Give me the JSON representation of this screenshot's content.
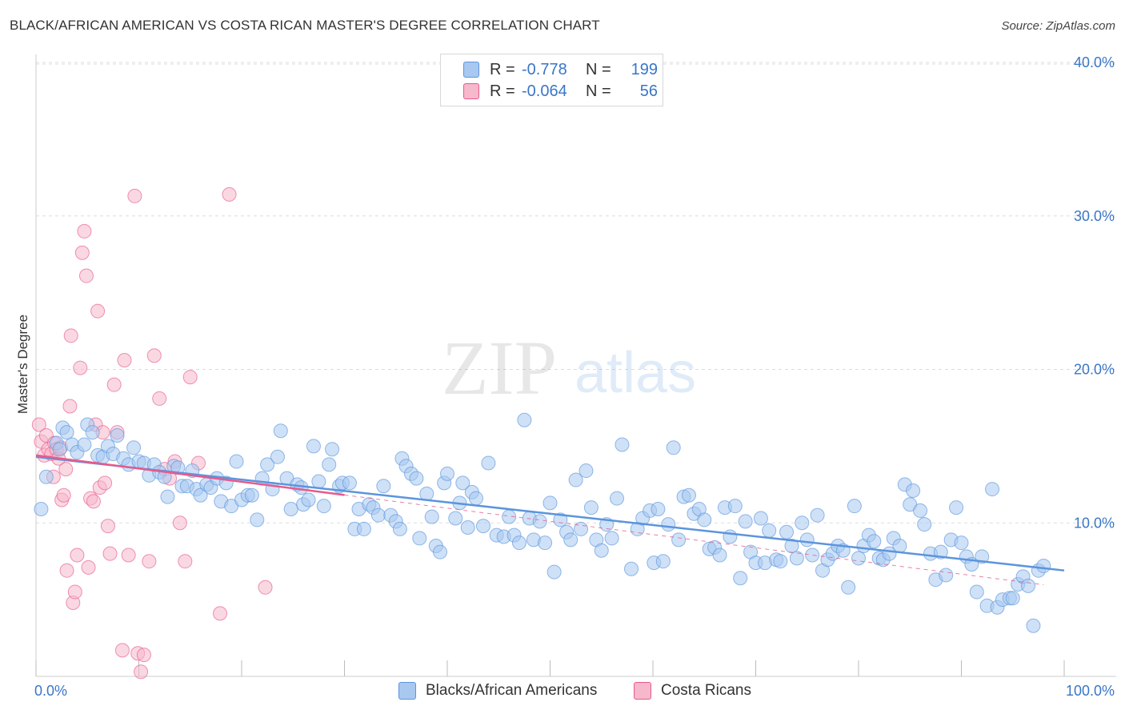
{
  "header": {
    "title": "BLACK/AFRICAN AMERICAN VS COSTA RICAN MASTER'S DEGREE CORRELATION CHART",
    "source": "Source: ZipAtlas.com"
  },
  "watermark": {
    "zip": "ZIP",
    "atlas": "atlas"
  },
  "legend": {
    "rows": [
      {
        "r_label": "R =",
        "r_value": "-0.778",
        "n_label": "N =",
        "n_value": "199",
        "color": "#a8c8f0"
      },
      {
        "r_label": "R =",
        "r_value": "-0.064",
        "n_label": "N =",
        "n_value": "56",
        "color": "#f6b8cb"
      }
    ]
  },
  "chart_data": {
    "type": "scatter",
    "title": "BLACK/AFRICAN AMERICAN VS COSTA RICAN MASTER'S DEGREE CORRELATION CHART",
    "xlabel": "",
    "ylabel": "Master's Degree",
    "xlim": [
      0,
      100
    ],
    "ylim": [
      0,
      40
    ],
    "x_tick_labels": [
      "0.0%",
      "100.0%"
    ],
    "y_ticks": [
      10,
      20,
      30,
      40
    ],
    "y_tick_labels": [
      "10.0%",
      "20.0%",
      "30.0%",
      "40.0%"
    ],
    "grid": true,
    "series": [
      {
        "name": "Blacks/African Americans",
        "color": "#5b95dd",
        "fill": "#a8c8f0",
        "trend": {
          "x": [
            0,
            100
          ],
          "y": [
            14.3,
            6.9
          ],
          "solid_to": 100
        },
        "points": [
          [
            0.5,
            10.9
          ],
          [
            1,
            13
          ],
          [
            2,
            15.2
          ],
          [
            2.3,
            14.8
          ],
          [
            2.6,
            16.2
          ],
          [
            3,
            15.9
          ],
          [
            3.5,
            15.1
          ],
          [
            4,
            14.6
          ],
          [
            4.7,
            15.1
          ],
          [
            5,
            16.4
          ],
          [
            5.5,
            15.9
          ],
          [
            6,
            14.4
          ],
          [
            6.5,
            14.3
          ],
          [
            7,
            15
          ],
          [
            7.5,
            14.5
          ],
          [
            7.9,
            15.7
          ],
          [
            8.5,
            14.2
          ],
          [
            9,
            13.8
          ],
          [
            9.5,
            14.9
          ],
          [
            10,
            14
          ],
          [
            10.5,
            13.9
          ],
          [
            11,
            13.1
          ],
          [
            11.5,
            13.8
          ],
          [
            12,
            13.3
          ],
          [
            12.5,
            13
          ],
          [
            12.8,
            11.7
          ],
          [
            13.4,
            13.7
          ],
          [
            13.8,
            13.6
          ],
          [
            14.2,
            12.4
          ],
          [
            14.7,
            12.4
          ],
          [
            15.2,
            13.4
          ],
          [
            15.6,
            12.2
          ],
          [
            16,
            11.8
          ],
          [
            16.6,
            12.5
          ],
          [
            17,
            12.3
          ],
          [
            17.6,
            12.9
          ],
          [
            18,
            11.4
          ],
          [
            18.5,
            12.6
          ],
          [
            19,
            11.1
          ],
          [
            19.5,
            14
          ],
          [
            20,
            11.5
          ],
          [
            20.6,
            11.8
          ],
          [
            21,
            11.8
          ],
          [
            21.5,
            10.2
          ],
          [
            22,
            12.9
          ],
          [
            22.5,
            13.8
          ],
          [
            23,
            12.2
          ],
          [
            23.5,
            14.3
          ],
          [
            23.8,
            16
          ],
          [
            24.4,
            12.9
          ],
          [
            24.8,
            10.9
          ],
          [
            25.4,
            12.5
          ],
          [
            25.8,
            12.3
          ],
          [
            26,
            11.2
          ],
          [
            26.5,
            11.5
          ],
          [
            27,
            15
          ],
          [
            27.5,
            12.7
          ],
          [
            28,
            11.1
          ],
          [
            28.5,
            13.8
          ],
          [
            28.8,
            14.8
          ],
          [
            29.5,
            12.4
          ],
          [
            29.8,
            12.6
          ],
          [
            30.5,
            12.6
          ],
          [
            31,
            9.6
          ],
          [
            31.4,
            10.9
          ],
          [
            31.9,
            9.6
          ],
          [
            32.4,
            11.2
          ],
          [
            32.8,
            11
          ],
          [
            33.3,
            10.5
          ],
          [
            33.8,
            12.4
          ],
          [
            34.5,
            10.5
          ],
          [
            35,
            10.1
          ],
          [
            35.4,
            9.6
          ],
          [
            35.6,
            14.2
          ],
          [
            36,
            13.7
          ],
          [
            36.5,
            13.2
          ],
          [
            37,
            12.9
          ],
          [
            37.3,
            9
          ],
          [
            38,
            11.9
          ],
          [
            38.5,
            10.4
          ],
          [
            38.9,
            8.5
          ],
          [
            39.3,
            8.1
          ],
          [
            39.7,
            12.6
          ],
          [
            40,
            13.2
          ],
          [
            40.8,
            10.3
          ],
          [
            41.2,
            11.3
          ],
          [
            41.5,
            12.6
          ],
          [
            42,
            9.7
          ],
          [
            42.4,
            12
          ],
          [
            42.8,
            11.6
          ],
          [
            43.5,
            9.8
          ],
          [
            44,
            13.9
          ],
          [
            44.8,
            9.2
          ],
          [
            45.5,
            9.1
          ],
          [
            46,
            10.4
          ],
          [
            46.5,
            9.2
          ],
          [
            47,
            8.7
          ],
          [
            47.5,
            16.7
          ],
          [
            48,
            10.3
          ],
          [
            48.4,
            8.9
          ],
          [
            49,
            10.1
          ],
          [
            49.5,
            8.7
          ],
          [
            50,
            11.3
          ],
          [
            50.4,
            6.8
          ],
          [
            51,
            10.2
          ],
          [
            51.6,
            9.4
          ],
          [
            52,
            8.9
          ],
          [
            52.5,
            12.8
          ],
          [
            53,
            9.6
          ],
          [
            53.5,
            13.4
          ],
          [
            54,
            11
          ],
          [
            54.5,
            8.9
          ],
          [
            55,
            8.2
          ],
          [
            55.5,
            9.9
          ],
          [
            56,
            9
          ],
          [
            56.5,
            11.6
          ],
          [
            57,
            15.1
          ],
          [
            57.9,
            7
          ],
          [
            58.5,
            9.6
          ],
          [
            59,
            10.3
          ],
          [
            59.7,
            10.8
          ],
          [
            60.1,
            7.4
          ],
          [
            60.5,
            10.9
          ],
          [
            61,
            7.5
          ],
          [
            61.5,
            9.9
          ],
          [
            62,
            14.9
          ],
          [
            62.5,
            8.9
          ],
          [
            63,
            11.7
          ],
          [
            63.5,
            11.8
          ],
          [
            64,
            10.6
          ],
          [
            64.5,
            10.9
          ],
          [
            65,
            10.2
          ],
          [
            65.5,
            8.3
          ],
          [
            66,
            8.4
          ],
          [
            66.5,
            7.9
          ],
          [
            67,
            11
          ],
          [
            67.5,
            9.1
          ],
          [
            68,
            11.1
          ],
          [
            68.5,
            6.4
          ],
          [
            69,
            10.1
          ],
          [
            69.5,
            8.1
          ],
          [
            70,
            7.4
          ],
          [
            70.5,
            10.3
          ],
          [
            70.9,
            7.4
          ],
          [
            71.3,
            9.5
          ],
          [
            72,
            7.6
          ],
          [
            72.4,
            7.5
          ],
          [
            73,
            9.4
          ],
          [
            73.5,
            8.5
          ],
          [
            74,
            7.7
          ],
          [
            74.5,
            10
          ],
          [
            75,
            8.9
          ],
          [
            75.5,
            7.9
          ],
          [
            76,
            10.5
          ],
          [
            76.5,
            6.9
          ],
          [
            77,
            7.6
          ],
          [
            77.5,
            8
          ],
          [
            78,
            8.5
          ],
          [
            78.5,
            8.2
          ],
          [
            79,
            5.8
          ],
          [
            79.6,
            11.1
          ],
          [
            80,
            7.7
          ],
          [
            80.5,
            8.5
          ],
          [
            81,
            9.2
          ],
          [
            81.5,
            8.8
          ],
          [
            82,
            7.7
          ],
          [
            82.4,
            7.6
          ],
          [
            83,
            8
          ],
          [
            83.4,
            9
          ],
          [
            84,
            8.5
          ],
          [
            84.5,
            12.5
          ],
          [
            85,
            11.2
          ],
          [
            85.3,
            12.1
          ],
          [
            86,
            10.8
          ],
          [
            86.4,
            9.9
          ],
          [
            87,
            8
          ],
          [
            87.5,
            6.3
          ],
          [
            88,
            8.1
          ],
          [
            88.5,
            6.6
          ],
          [
            89,
            8.9
          ],
          [
            89.5,
            11
          ],
          [
            90,
            8.7
          ],
          [
            90.5,
            7.8
          ],
          [
            91,
            7.3
          ],
          [
            91.5,
            5.5
          ],
          [
            92,
            7.8
          ],
          [
            92.5,
            4.6
          ],
          [
            93,
            12.2
          ],
          [
            93.5,
            4.5
          ],
          [
            94,
            5
          ],
          [
            94.7,
            5.1
          ],
          [
            95,
            5.1
          ],
          [
            95.5,
            6
          ],
          [
            96,
            6.5
          ],
          [
            96.5,
            5.9
          ],
          [
            97,
            3.3
          ],
          [
            97.5,
            6.9
          ],
          [
            98,
            7.2
          ]
        ]
      },
      {
        "name": "Costa Ricans",
        "color": "#e85a8c",
        "fill": "#f6b8cb",
        "trend": {
          "x": [
            0,
            100
          ],
          "y": [
            14.4,
            5.8
          ],
          "solid_to": 30
        },
        "points": [
          [
            0.3,
            16.4
          ],
          [
            0.5,
            15.3
          ],
          [
            0.8,
            14.4
          ],
          [
            1,
            15.7
          ],
          [
            1.2,
            14.8
          ],
          [
            1.5,
            14.5
          ],
          [
            1.7,
            13
          ],
          [
            1.8,
            15.2
          ],
          [
            2,
            14.8
          ],
          [
            2.2,
            14.2
          ],
          [
            2.4,
            14.9
          ],
          [
            2.5,
            11.5
          ],
          [
            2.7,
            11.8
          ],
          [
            2.9,
            13.5
          ],
          [
            3,
            6.9
          ],
          [
            3.3,
            17.6
          ],
          [
            3.4,
            22.2
          ],
          [
            3.6,
            4.8
          ],
          [
            3.8,
            5.5
          ],
          [
            4,
            7.9
          ],
          [
            4.3,
            20.1
          ],
          [
            4.5,
            27.6
          ],
          [
            4.7,
            29
          ],
          [
            4.9,
            26.1
          ],
          [
            5.1,
            7.1
          ],
          [
            5.3,
            11.6
          ],
          [
            5.6,
            11.4
          ],
          [
            5.8,
            16.4
          ],
          [
            6,
            23.8
          ],
          [
            6.2,
            12.3
          ],
          [
            6.5,
            15.9
          ],
          [
            6.7,
            12.6
          ],
          [
            7,
            9.8
          ],
          [
            7.2,
            8
          ],
          [
            7.6,
            19
          ],
          [
            7.9,
            15.9
          ],
          [
            8.4,
            1.7
          ],
          [
            8.6,
            20.6
          ],
          [
            9,
            7.9
          ],
          [
            9.6,
            31.3
          ],
          [
            9.9,
            1.5
          ],
          [
            10.2,
            0.3
          ],
          [
            10.5,
            1.4
          ],
          [
            11,
            7.5
          ],
          [
            11.5,
            20.9
          ],
          [
            12,
            18.1
          ],
          [
            12.5,
            13.5
          ],
          [
            13,
            12.9
          ],
          [
            13.5,
            14
          ],
          [
            14,
            10
          ],
          [
            14.5,
            7.5
          ],
          [
            15,
            19.5
          ],
          [
            15.8,
            13.9
          ],
          [
            17.9,
            4.1
          ],
          [
            18.8,
            31.4
          ],
          [
            22.3,
            5.8
          ]
        ]
      }
    ]
  },
  "bottom_legend": {
    "items": [
      {
        "label": "Blacks/African Americans",
        "color": "#a8c8f0"
      },
      {
        "label": "Costa Ricans",
        "color": "#f6b8cb"
      }
    ]
  }
}
